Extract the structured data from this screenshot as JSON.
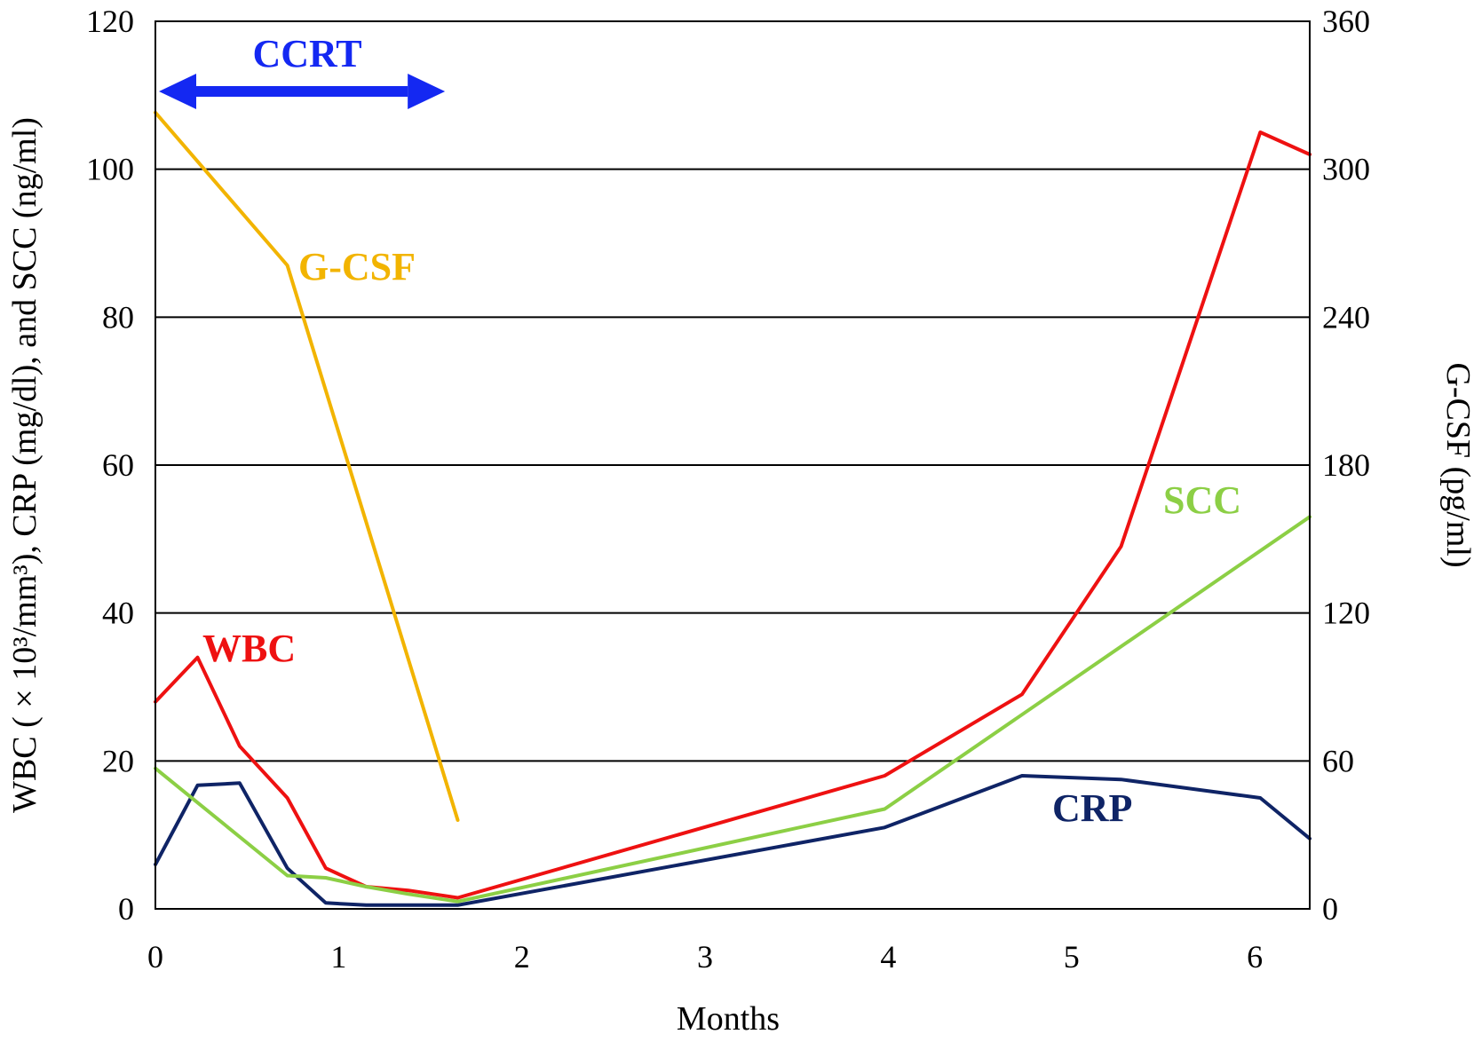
{
  "chart_data": {
    "type": "line",
    "xlabel": "Months",
    "ylabel_left": "WBC ( × 10³/mm³), CRP (mg/dl), and SCC (ng/ml)",
    "ylabel_right": "G-CSF (pg/ml)",
    "xlim": [
      0,
      6.3
    ],
    "ylim_left": [
      0,
      120
    ],
    "ylim_right": [
      0,
      360
    ],
    "x_ticks": [
      "0",
      "1",
      "2",
      "3",
      "4",
      "5",
      "6"
    ],
    "y_ticks_left": [
      "0",
      "20",
      "40",
      "60",
      "80",
      "100",
      "120"
    ],
    "y_ticks_right": [
      "0",
      "60",
      "120",
      "180",
      "240",
      "300",
      "360"
    ],
    "grid": "horizontal",
    "series": [
      {
        "name": "WBC",
        "axis": "left",
        "color": "#ee1111",
        "x": [
          0,
          0.23,
          0.46,
          0.72,
          0.93,
          1.15,
          1.38,
          1.65,
          3.98,
          4.73,
          5.27,
          6.03,
          6.3
        ],
        "y": [
          28,
          34,
          22,
          15,
          5.5,
          3,
          2.5,
          1.5,
          18,
          29,
          49,
          105,
          102
        ]
      },
      {
        "name": "CRP",
        "axis": "left",
        "color": "#0f2466",
        "x": [
          0,
          0.23,
          0.46,
          0.72,
          0.93,
          1.15,
          1.38,
          1.65,
          3.98,
          4.73,
          5.27,
          6.03,
          6.3
        ],
        "y": [
          6,
          16.7,
          17,
          5.5,
          0.8,
          0.5,
          0.5,
          0.5,
          11,
          18,
          17.5,
          15,
          9.5
        ]
      },
      {
        "name": "SCC",
        "axis": "left",
        "color": "#8ccf45",
        "x": [
          0,
          0.72,
          0.93,
          1.15,
          1.38,
          1.65,
          3.98,
          6.3
        ],
        "y": [
          19,
          4.5,
          4.2,
          3,
          2,
          1,
          13.5,
          53
        ]
      },
      {
        "name": "G-CSF",
        "axis": "right",
        "color": "#f2b400",
        "x": [
          0,
          0.72,
          1.65
        ],
        "y": [
          323,
          261,
          36
        ]
      }
    ],
    "annotations": [
      {
        "text": "CCRT",
        "color": "#1428f2",
        "x_start": 0,
        "x_end": 1.6
      }
    ]
  }
}
